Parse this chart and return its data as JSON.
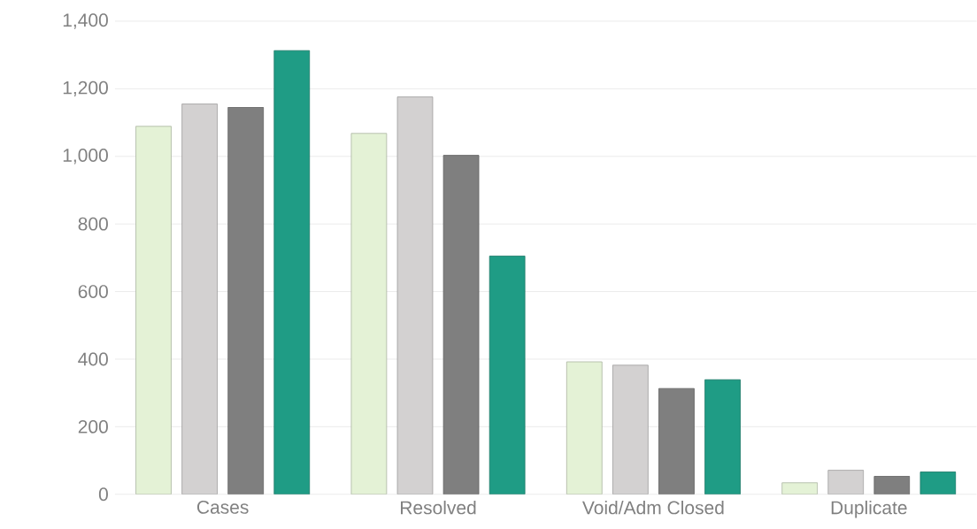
{
  "chart_data": {
    "type": "bar",
    "categories": [
      "Cases",
      "Resolved",
      "Void/Adm Closed",
      "Duplicate"
    ],
    "series": [
      {
        "color": "#e4f2d6",
        "values": [
          1089,
          1068,
          392,
          34
        ]
      },
      {
        "color": "#d3d1d1",
        "values": [
          1155,
          1176,
          382,
          71
        ]
      },
      {
        "color": "#7f7f7f",
        "values": [
          1145,
          1003,
          313,
          53
        ]
      },
      {
        "color": "#1f9c85",
        "values": [
          1313,
          705,
          339,
          66
        ]
      }
    ],
    "ylim": [
      0,
      1400
    ],
    "yticks": [
      0,
      200,
      400,
      600,
      800,
      {
        "value": 1000,
        "label": "1,000"
      },
      {
        "value": 1200,
        "label": "1,200"
      },
      {
        "value": 1400,
        "label": "1,400"
      }
    ],
    "grid": "y"
  }
}
